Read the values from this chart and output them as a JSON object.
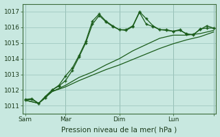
{
  "xlabel": "Pression niveau de la mer( hPa )",
  "bg_color": "#c8e8e0",
  "grid_color": "#a0c8c0",
  "line_color": "#1a5c1a",
  "ylim": [
    1010.5,
    1017.5
  ],
  "yticks": [
    1011,
    1012,
    1013,
    1014,
    1015,
    1016,
    1017
  ],
  "total_days": 7,
  "series1_x": [
    0.0,
    0.25,
    0.5,
    0.75,
    1.0,
    1.25,
    1.5,
    1.75,
    2.0,
    2.25,
    2.5,
    2.75,
    3.0,
    3.25,
    3.5,
    3.75,
    4.0,
    4.25,
    4.5,
    4.75,
    5.0,
    5.25,
    5.5,
    5.75,
    6.0,
    6.25,
    6.5,
    6.75,
    7.0
  ],
  "series1_y": [
    1011.4,
    1011.45,
    1011.15,
    1011.5,
    1012.0,
    1012.3,
    1012.9,
    1013.4,
    1014.2,
    1015.1,
    1016.4,
    1016.85,
    1016.4,
    1016.1,
    1015.85,
    1015.8,
    1016.05,
    1016.95,
    1016.2,
    1016.05,
    1015.85,
    1015.8,
    1015.75,
    1015.85,
    1015.55,
    1015.55,
    1015.85,
    1016.1,
    1015.95
  ],
  "series2_x": [
    0.0,
    0.25,
    0.5,
    0.75,
    1.0,
    1.25,
    1.5,
    1.75,
    2.0,
    2.25,
    2.5,
    2.75,
    3.0,
    3.25,
    3.5,
    3.75,
    4.0,
    4.25,
    4.5,
    4.75,
    5.0,
    5.25,
    5.5,
    5.75,
    6.0,
    6.25,
    6.5,
    6.75,
    7.0
  ],
  "series2_y": [
    1011.35,
    1011.4,
    1011.15,
    1011.6,
    1012.0,
    1012.25,
    1012.6,
    1013.25,
    1014.1,
    1015.0,
    1016.2,
    1016.75,
    1016.35,
    1016.05,
    1015.85,
    1015.85,
    1016.1,
    1017.0,
    1016.55,
    1016.1,
    1015.85,
    1015.85,
    1015.75,
    1015.8,
    1015.6,
    1015.5,
    1015.9,
    1015.95,
    1015.95
  ],
  "series3_x": [
    0.0,
    0.5,
    1.0,
    1.5,
    2.0,
    2.5,
    3.0,
    3.5,
    4.0,
    4.5,
    5.0,
    5.5,
    6.0,
    6.5,
    7.0
  ],
  "series3_y": [
    1011.35,
    1011.15,
    1011.9,
    1012.3,
    1012.8,
    1013.15,
    1013.6,
    1014.0,
    1014.5,
    1014.9,
    1015.3,
    1015.5,
    1015.5,
    1015.6,
    1015.8
  ],
  "series4_x": [
    0.0,
    0.5,
    1.0,
    1.5,
    2.0,
    2.5,
    3.0,
    3.5,
    4.0,
    4.5,
    5.0,
    5.5,
    6.0,
    6.5,
    7.0
  ],
  "series4_y": [
    1011.35,
    1011.15,
    1011.9,
    1012.2,
    1012.6,
    1012.95,
    1013.3,
    1013.6,
    1013.95,
    1014.3,
    1014.65,
    1014.95,
    1015.2,
    1015.4,
    1015.7
  ],
  "day_vlines": [
    0.0,
    1.5,
    3.5,
    5.5,
    7.0
  ],
  "xtick_positions": [
    0.0,
    1.5,
    3.5,
    5.5,
    7.0
  ],
  "xtick_labels": [
    "Sam",
    "Mar",
    "Dim",
    "Lun",
    ""
  ]
}
